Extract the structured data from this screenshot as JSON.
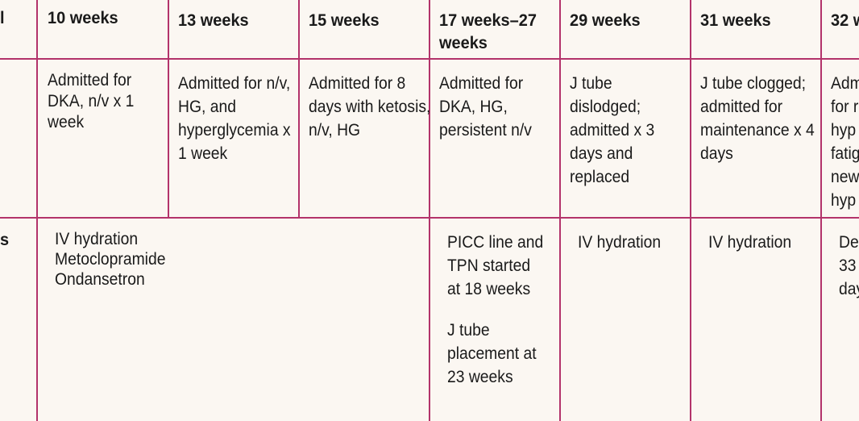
{
  "left_edge": {
    "row1": "l",
    "row3": "s"
  },
  "headers": [
    "10 weeks",
    "13 weeks",
    "15 weeks",
    "17 weeks–27 weeks",
    "29 weeks",
    "31 weeks",
    "32 w"
  ],
  "admissions": [
    "Admitted for DKA, n/v x 1 week",
    "Admitted for n/v, HG, and hyperglycemia x 1 week",
    "Admitted for 8 days with ketosis, n/v, HG",
    "Admitted for DKA, HG, persistent n/v",
    "J tube dislodged; admitted x 3 days and replaced",
    "J tube clogged; admitted for maintenance x 4 days",
    "Adm for r hyp fatig new hyp"
  ],
  "treatments": {
    "early_lines": [
      "IV hydration",
      "Metoclopramide",
      "Ondansetron"
    ],
    "mid_p1": "PICC line and TPN started at 18 weeks",
    "mid_p2": "J tube placement at 23 weeks",
    "w29": "IV hydration",
    "w31": "IV hydration",
    "w32": "De 33 day"
  }
}
